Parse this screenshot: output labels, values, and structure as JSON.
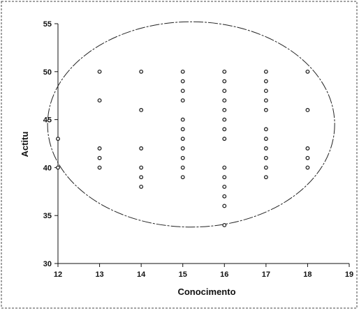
{
  "chart_data": {
    "type": "scatter",
    "title": "",
    "xlabel": "Conocimento",
    "ylabel": "Actitu",
    "xlim": [
      12,
      19
    ],
    "ylim": [
      30,
      55
    ],
    "xticks": [
      "12",
      "13",
      "14",
      "15",
      "16",
      "17",
      "18",
      "19"
    ],
    "yticks": [
      "30",
      "35",
      "40",
      "45",
      "50",
      "55"
    ],
    "grid": false,
    "legend": "none",
    "marker_color": "#222222",
    "ellipse": {
      "center": [
        15.2,
        44.5
      ],
      "radius_x": 3.45,
      "radius_y": 10.7,
      "style": "dashed"
    },
    "series": [
      {
        "points": [
          [
            12,
            43
          ],
          [
            12,
            40
          ],
          [
            13,
            50
          ],
          [
            13,
            47
          ],
          [
            13,
            42
          ],
          [
            13,
            41
          ],
          [
            13,
            40
          ],
          [
            14,
            50
          ],
          [
            14,
            46
          ],
          [
            14,
            42
          ],
          [
            14,
            40
          ],
          [
            14,
            39
          ],
          [
            14,
            38
          ],
          [
            15,
            50
          ],
          [
            15,
            49
          ],
          [
            15,
            48
          ],
          [
            15,
            47
          ],
          [
            15,
            45
          ],
          [
            15,
            44
          ],
          [
            15,
            43
          ],
          [
            15,
            42
          ],
          [
            15,
            41
          ],
          [
            15,
            40
          ],
          [
            15,
            39
          ],
          [
            16,
            50
          ],
          [
            16,
            49
          ],
          [
            16,
            48
          ],
          [
            16,
            47
          ],
          [
            16,
            46
          ],
          [
            16,
            45
          ],
          [
            16,
            44
          ],
          [
            16,
            43
          ],
          [
            16,
            40
          ],
          [
            16,
            39
          ],
          [
            16,
            38
          ],
          [
            16,
            37
          ],
          [
            16,
            36
          ],
          [
            16,
            34
          ],
          [
            17,
            50
          ],
          [
            17,
            49
          ],
          [
            17,
            48
          ],
          [
            17,
            47
          ],
          [
            17,
            46
          ],
          [
            17,
            44
          ],
          [
            17,
            43
          ],
          [
            17,
            42
          ],
          [
            17,
            41
          ],
          [
            17,
            40
          ],
          [
            17,
            39
          ],
          [
            18,
            50
          ],
          [
            18,
            46
          ],
          [
            18,
            42
          ],
          [
            18,
            41
          ],
          [
            18,
            40
          ]
        ]
      }
    ]
  }
}
